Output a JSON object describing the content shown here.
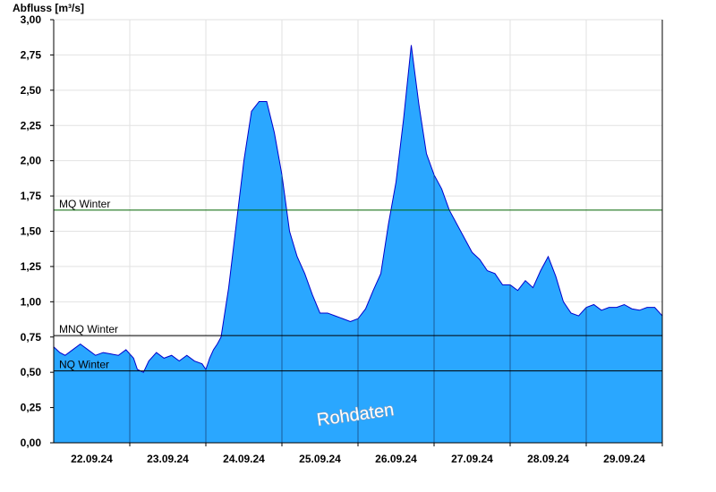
{
  "chart_data": {
    "type": "area",
    "ylabel": "Abfluss [m³/s]",
    "xlabel": "",
    "ylim": [
      0,
      3
    ],
    "y_ticks": [
      "0,00",
      "0,25",
      "0,50",
      "0,75",
      "1,00",
      "1,25",
      "1,50",
      "1,75",
      "2,00",
      "2,25",
      "2,50",
      "2,75",
      "3,00"
    ],
    "x_range_days": [
      "21.09.24 12:00",
      "29.09.24 12:00"
    ],
    "x_tick_labels": [
      "22.09.24",
      "23.09.24",
      "24.09.24",
      "25.09.24",
      "26.09.24",
      "27.09.24",
      "28.09.24",
      "29.09.24"
    ],
    "grid": true,
    "watermark": "Rohdaten",
    "fill_color": "#2aa7ff",
    "line_color": "#0000cc",
    "reference_lines": [
      {
        "name": "MQ Winter",
        "value": 1.65,
        "color": "#006400"
      },
      {
        "name": "MNQ Winter",
        "value": 0.76,
        "color": "#000000"
      },
      {
        "name": "NQ Winter",
        "value": 0.51,
        "color": "#000000"
      }
    ],
    "series": [
      {
        "x_days": [
          0.0,
          0.08,
          0.15,
          0.25,
          0.35,
          0.45,
          0.55,
          0.65,
          0.75,
          0.85,
          0.95,
          1.05,
          1.1,
          1.18,
          1.25,
          1.35,
          1.45,
          1.55,
          1.65,
          1.75,
          1.85,
          1.95,
          2.0,
          2.05,
          2.1,
          2.15,
          2.2,
          2.3,
          2.4,
          2.5,
          2.6,
          2.7,
          2.8,
          2.9,
          3.0,
          3.1,
          3.2,
          3.3,
          3.4,
          3.5,
          3.6,
          3.7,
          3.8,
          3.9,
          4.0,
          4.1,
          4.2,
          4.3,
          4.4,
          4.5,
          4.6,
          4.7,
          4.8,
          4.9,
          5.0,
          5.1,
          5.2,
          5.3,
          5.4,
          5.5,
          5.6,
          5.7,
          5.8,
          5.9,
          6.0,
          6.1,
          6.2,
          6.3,
          6.4,
          6.5,
          6.6,
          6.7,
          6.8,
          6.9,
          7.0,
          7.1,
          7.2,
          7.3,
          7.4,
          7.5,
          7.6,
          7.7,
          7.8,
          7.9,
          8.0
        ],
        "values": [
          0.68,
          0.64,
          0.62,
          0.66,
          0.7,
          0.66,
          0.62,
          0.64,
          0.63,
          0.62,
          0.66,
          0.6,
          0.52,
          0.5,
          0.58,
          0.64,
          0.6,
          0.62,
          0.58,
          0.62,
          0.58,
          0.56,
          0.52,
          0.6,
          0.66,
          0.7,
          0.75,
          1.1,
          1.55,
          2.0,
          2.35,
          2.42,
          2.42,
          2.2,
          1.9,
          1.5,
          1.32,
          1.2,
          1.05,
          0.92,
          0.92,
          0.9,
          0.88,
          0.86,
          0.88,
          0.95,
          1.08,
          1.2,
          1.55,
          1.85,
          2.3,
          2.82,
          2.4,
          2.05,
          1.9,
          1.8,
          1.65,
          1.55,
          1.45,
          1.35,
          1.3,
          1.22,
          1.2,
          1.12,
          1.12,
          1.08,
          1.15,
          1.1,
          1.22,
          1.32,
          1.18,
          1.0,
          0.92,
          0.9,
          0.96,
          0.98,
          0.94,
          0.96,
          0.96,
          0.98,
          0.95,
          0.94,
          0.96,
          0.96,
          0.9
        ]
      }
    ]
  }
}
